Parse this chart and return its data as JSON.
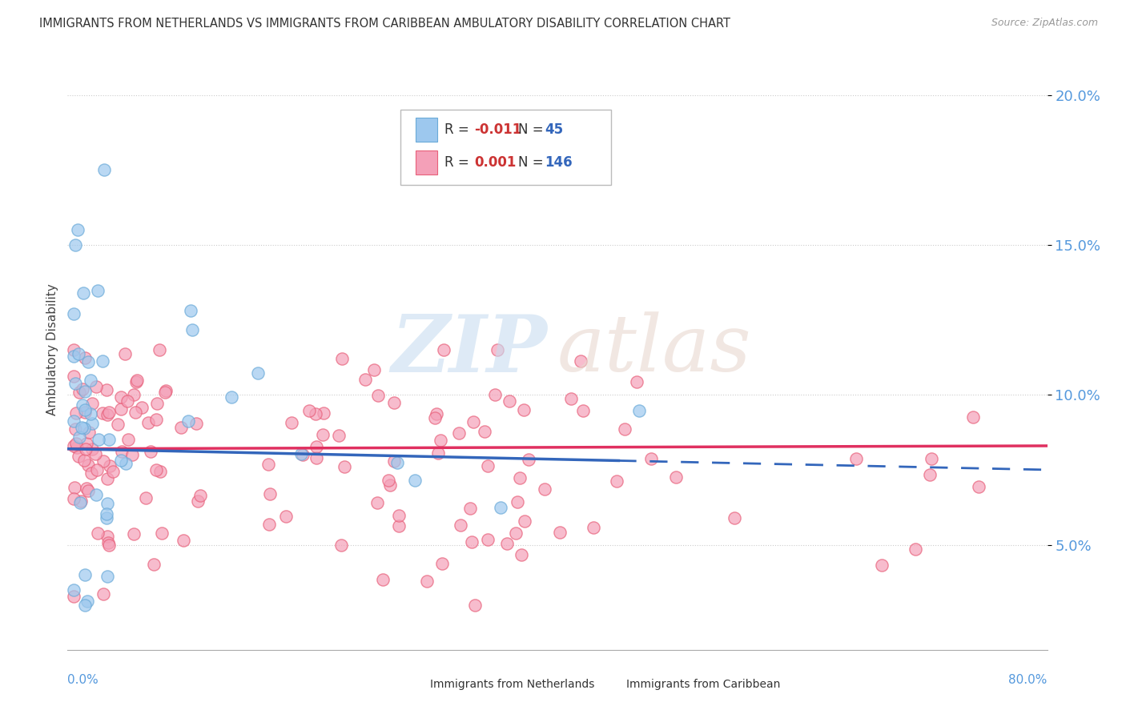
{
  "title": "IMMIGRANTS FROM NETHERLANDS VS IMMIGRANTS FROM CARIBBEAN AMBULATORY DISABILITY CORRELATION CHART",
  "source": "Source: ZipAtlas.com",
  "ylabel": "Ambulatory Disability",
  "xlim": [
    0.0,
    0.8
  ],
  "ylim": [
    0.015,
    0.215
  ],
  "yticks": [
    0.05,
    0.1,
    0.15,
    0.2
  ],
  "ytick_labels": [
    "5.0%",
    "10.0%",
    "15.0%",
    "20.0%"
  ],
  "watermark_zip": "ZIP",
  "watermark_atlas": "atlas",
  "netherlands_color": "#9dc8ee",
  "caribbean_color": "#f4a0b8",
  "netherlands_edge": "#6aaad8",
  "caribbean_edge": "#e8607a",
  "netherlands_trend_color": "#3366bb",
  "caribbean_trend_color": "#e03060",
  "nl_R": -0.011,
  "nl_N": 45,
  "car_R": 0.001,
  "car_N": 146,
  "nl_trend_start_y": 0.082,
  "nl_trend_end_y": 0.075,
  "car_trend_start_y": 0.082,
  "car_trend_end_y": 0.083,
  "background_color": "#ffffff",
  "grid_color": "#cccccc",
  "tick_color": "#5599dd",
  "axis_color": "#aaaaaa"
}
